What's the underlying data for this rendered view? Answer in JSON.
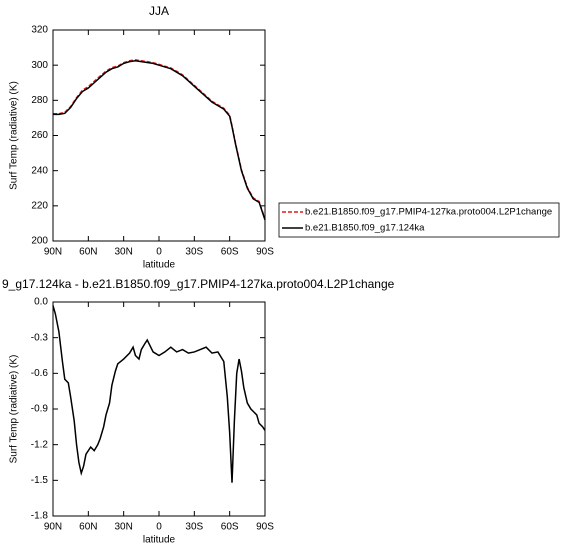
{
  "chart_data": [
    {
      "type": "line",
      "title": "JJA",
      "xlabel": "latitude",
      "ylabel": "Surf Temp (radiative) (K)",
      "x": [
        90,
        85,
        80,
        75,
        70,
        65,
        60,
        55,
        50,
        45,
        40,
        35,
        30,
        25,
        20,
        15,
        10,
        5,
        0,
        -5,
        -10,
        -15,
        -20,
        -25,
        -30,
        -35,
        -40,
        -45,
        -50,
        -55,
        -60,
        -62,
        -65,
        -70,
        -75,
        -80,
        -85,
        -88,
        -90
      ],
      "series": [
        {
          "name": "b.e21.B1850.f09_g17.PMIP4-127ka.proto004.L2P1change",
          "color": "#e41a1c",
          "dash": true,
          "values": [
            272.4,
            272.4,
            273.2,
            276.5,
            281.5,
            285.8,
            287.8,
            290.8,
            293.8,
            296.6,
            298.6,
            299.5,
            301.4,
            302.5,
            303,
            302.5,
            302,
            301.4,
            300.5,
            299.4,
            298.4,
            296.5,
            294.5,
            291.5,
            288.5,
            285.5,
            282.5,
            279.5,
            277.5,
            275.5,
            271.5,
            265.5,
            255.5,
            240.5,
            230.5,
            224.5,
            222.5,
            216.5,
            212.3
          ]
        },
        {
          "name": "b.e21.B1850.f09_g17.124ka",
          "color": "#000000",
          "dash": false,
          "values": [
            272,
            272,
            272.6,
            276,
            281,
            285,
            287,
            290,
            293,
            296,
            298,
            299,
            301,
            302,
            302.5,
            302,
            301.5,
            301,
            300,
            299,
            298,
            296,
            294,
            291,
            288,
            285,
            282,
            279,
            277,
            275,
            271,
            265,
            255,
            240,
            230,
            224,
            222,
            216,
            212
          ]
        }
      ],
      "xlim": [
        90,
        -90
      ],
      "xticks": [
        {
          "value": 90,
          "label": "90N"
        },
        {
          "value": 60,
          "label": "60N"
        },
        {
          "value": 30,
          "label": "30N"
        },
        {
          "value": 0,
          "label": "0"
        },
        {
          "value": -30,
          "label": "30S"
        },
        {
          "value": -60,
          "label": "60S"
        },
        {
          "value": -90,
          "label": "90S"
        }
      ],
      "ylim": [
        200,
        320
      ],
      "yticks": [
        200,
        220,
        240,
        260,
        280,
        300,
        320
      ]
    },
    {
      "type": "line",
      "title": "9_g17.124ka - b.e21.B1850.f09_g17.PMIP4-127ka.proto004.L2P1change",
      "xlabel": "latitude",
      "ylabel": "Surf Temp (radiative) (K)",
      "x": [
        90,
        88,
        85,
        82,
        80,
        77,
        75,
        72,
        70,
        68,
        66,
        64,
        62,
        60,
        58,
        55,
        52,
        50,
        47,
        45,
        42,
        40,
        37,
        35,
        30,
        25,
        22,
        20,
        17,
        15,
        12,
        10,
        7,
        5,
        0,
        -5,
        -10,
        -15,
        -20,
        -25,
        -30,
        -35,
        -40,
        -45,
        -50,
        -55,
        -58,
        -60,
        -62,
        -64,
        -66,
        -68,
        -70,
        -72,
        -75,
        -78,
        -80,
        -83,
        -85,
        -88,
        -90
      ],
      "color": "#000000",
      "values": [
        -0.03,
        -0.1,
        -0.25,
        -0.5,
        -0.65,
        -0.68,
        -0.8,
        -1.0,
        -1.2,
        -1.35,
        -1.44,
        -1.38,
        -1.28,
        -1.25,
        -1.22,
        -1.25,
        -1.2,
        -1.15,
        -1.05,
        -0.95,
        -0.85,
        -0.7,
        -0.58,
        -0.52,
        -0.48,
        -0.43,
        -0.38,
        -0.45,
        -0.48,
        -0.4,
        -0.35,
        -0.32,
        -0.38,
        -0.42,
        -0.45,
        -0.42,
        -0.38,
        -0.42,
        -0.4,
        -0.43,
        -0.42,
        -0.4,
        -0.38,
        -0.43,
        -0.42,
        -0.5,
        -0.8,
        -1.1,
        -1.52,
        -1.0,
        -0.6,
        -0.48,
        -0.58,
        -0.72,
        -0.85,
        -0.9,
        -0.92,
        -0.95,
        -1.02,
        -1.05,
        -1.08
      ],
      "xlim": [
        90,
        -90
      ],
      "xticks": [
        {
          "value": 90,
          "label": "90N"
        },
        {
          "value": 60,
          "label": "60N"
        },
        {
          "value": 30,
          "label": "30N"
        },
        {
          "value": 0,
          "label": "0"
        },
        {
          "value": -30,
          "label": "30S"
        },
        {
          "value": -60,
          "label": "60S"
        },
        {
          "value": -90,
          "label": "90S"
        }
      ],
      "ylim": [
        -1.8,
        0
      ],
      "yticks": [
        -1.8,
        -1.5,
        -1.2,
        -0.9,
        -0.6,
        -0.3,
        {
          "value": 0,
          "label": "0.0"
        }
      ]
    }
  ]
}
